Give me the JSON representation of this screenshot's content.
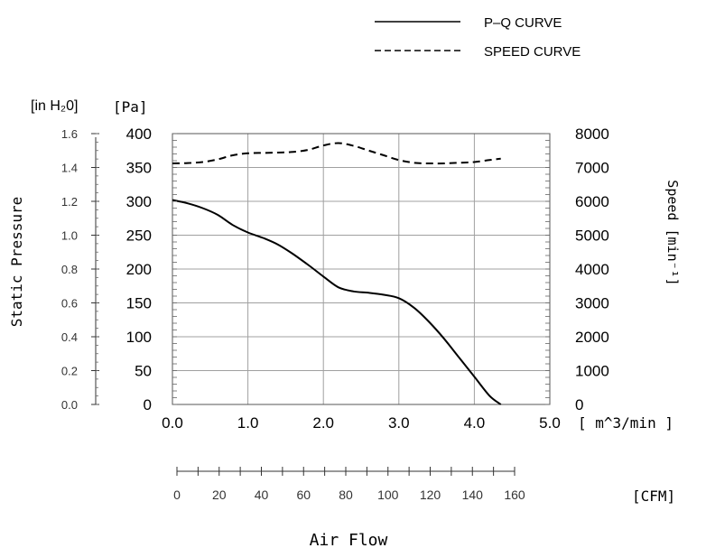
{
  "legend": {
    "pq_label": "P–Q CURVE",
    "speed_label": "SPEED CURVE"
  },
  "axes": {
    "left_unit_inh2o": "[in H₂0]",
    "left_unit_pa": "[Pa]",
    "left_title": "Static Pressure",
    "right_title": "Speed [min⁻¹]",
    "x_unit_m3": "[ m^3/min ]",
    "x_unit_cfm": "[CFM]",
    "x_title": "Air Flow"
  },
  "chart_data": {
    "type": "line",
    "xlim": [
      0,
      5
    ],
    "ylim": [
      0,
      400
    ],
    "speed_lim": [
      0,
      8000
    ],
    "grid": true,
    "legend_position": "top-right",
    "x_ticks": [
      "0.0",
      "1.0",
      "2.0",
      "3.0",
      "4.0",
      "5.0"
    ],
    "y_ticks_pa": [
      "0",
      "50",
      "100",
      "150",
      "200",
      "250",
      "300",
      "350",
      "400"
    ],
    "y_ticks_inh2o": [
      "0.0",
      "0.2",
      "0.4",
      "0.6",
      "0.8",
      "1.0",
      "1.2",
      "1.4",
      "1.6"
    ],
    "y_ticks_speed": [
      "0",
      "1000",
      "2000",
      "3000",
      "4000",
      "5000",
      "6000",
      "7000",
      "8000"
    ],
    "cfm_ticks": [
      "0",
      "20",
      "40",
      "60",
      "80",
      "100",
      "120",
      "140",
      "160"
    ],
    "series": [
      {
        "name": "P–Q CURVE",
        "style": "solid",
        "axis": "left",
        "x": [
          0.0,
          0.2,
          0.4,
          0.6,
          0.8,
          1.0,
          1.2,
          1.4,
          1.6,
          1.8,
          2.0,
          2.2,
          2.4,
          2.6,
          2.8,
          3.0,
          3.2,
          3.4,
          3.6,
          3.8,
          4.0,
          4.2,
          4.35
        ],
        "y": [
          302,
          297,
          290,
          280,
          265,
          254,
          246,
          236,
          222,
          206,
          189,
          173,
          167,
          165,
          162,
          157,
          143,
          122,
          97,
          69,
          41,
          13,
          0
        ]
      },
      {
        "name": "SPEED CURVE",
        "style": "dashed",
        "axis": "right",
        "x": [
          0.0,
          0.2,
          0.4,
          0.6,
          0.8,
          1.0,
          1.2,
          1.4,
          1.6,
          1.8,
          2.0,
          2.2,
          2.4,
          2.6,
          2.8,
          3.0,
          3.2,
          3.4,
          3.6,
          3.8,
          4.0,
          4.2,
          4.35
        ],
        "y": [
          7120,
          7130,
          7160,
          7240,
          7360,
          7420,
          7430,
          7440,
          7460,
          7520,
          7650,
          7720,
          7640,
          7500,
          7360,
          7220,
          7140,
          7120,
          7120,
          7140,
          7160,
          7220,
          7260
        ]
      }
    ]
  }
}
